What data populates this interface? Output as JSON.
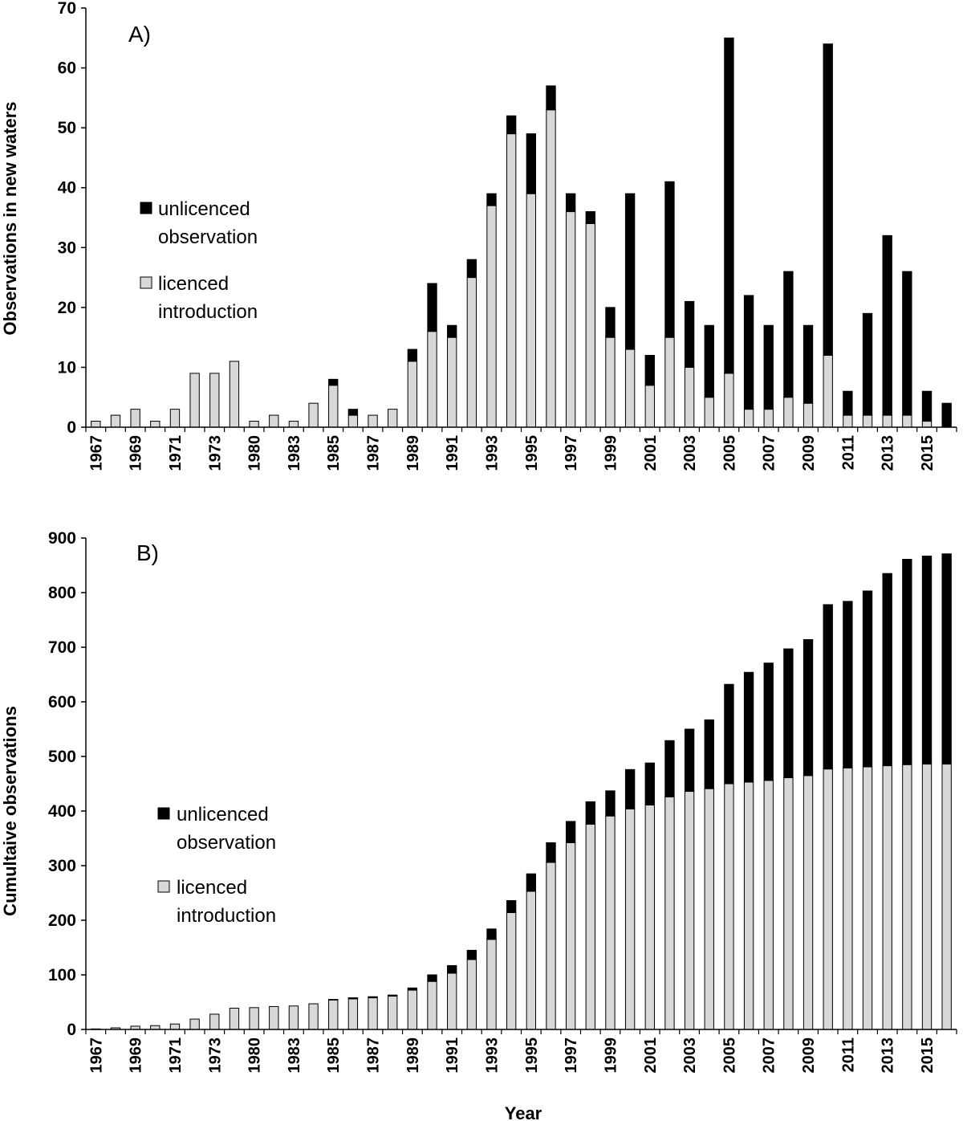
{
  "chart_data": [
    {
      "type": "bar",
      "stacked": true,
      "panel_label": "A)",
      "title": "",
      "xlabel": "",
      "ylabel": "Observations in new  waters",
      "ylim": [
        0,
        70
      ],
      "yticks": [
        0,
        10,
        20,
        30,
        40,
        50,
        60,
        70
      ],
      "grid": false,
      "legend_position": "left-middle",
      "categories": [
        "1967",
        "1968",
        "1969",
        "1970",
        "1971",
        "1972",
        "1973",
        "1974",
        "1980",
        "1982",
        "1983",
        "1984",
        "1985",
        "1986",
        "1987",
        "1988",
        "1989",
        "1990",
        "1991",
        "1992",
        "1993",
        "1994",
        "1995",
        "1996",
        "1997",
        "1998",
        "1999",
        "2000",
        "2001",
        "2002",
        "2003",
        "2004",
        "2005",
        "2006",
        "2007",
        "2008",
        "2009",
        "2010",
        "2011",
        "2012",
        "2013",
        "2014",
        "2015",
        "2016"
      ],
      "tick_labels": [
        "1967",
        "",
        "1969",
        "",
        "1971",
        "",
        "1973",
        "",
        "1980",
        "",
        "1983",
        "",
        "1985",
        "",
        "1987",
        "",
        "1989",
        "",
        "1991",
        "",
        "1993",
        "",
        "1995",
        "",
        "1997",
        "",
        "1999",
        "",
        "2001",
        "",
        "2003",
        "",
        "2005",
        "",
        "2007",
        "",
        "2009",
        "",
        "2011",
        "",
        "2013",
        "",
        "2015",
        ""
      ],
      "series": [
        {
          "name": "licenced introduction",
          "color": "#d8d8d8",
          "values": [
            1,
            2,
            3,
            1,
            3,
            9,
            9,
            11,
            1,
            2,
            1,
            4,
            7,
            2,
            2,
            3,
            11,
            16,
            15,
            25,
            37,
            49,
            39,
            53,
            36,
            34,
            15,
            13,
            7,
            15,
            10,
            5,
            9,
            3,
            3,
            5,
            4,
            12,
            2,
            2,
            2,
            2,
            1,
            0
          ]
        },
        {
          "name": "unlicenced observation",
          "color": "#000000",
          "values": [
            0,
            0,
            0,
            0,
            0,
            0,
            0,
            0,
            0,
            0,
            0,
            0,
            1,
            1,
            0,
            0,
            2,
            8,
            2,
            3,
            2,
            3,
            10,
            4,
            3,
            2,
            5,
            26,
            5,
            26,
            11,
            12,
            56,
            19,
            14,
            21,
            13,
            52,
            4,
            17,
            30,
            24,
            5,
            4
          ]
        }
      ],
      "legend_order": [
        "unlicenced observation",
        "licenced introduction"
      ]
    },
    {
      "type": "bar",
      "stacked": true,
      "panel_label": "B)",
      "title": "",
      "xlabel": "Year",
      "ylabel": "Cumultaive observations",
      "ylim": [
        0,
        900
      ],
      "yticks": [
        0,
        100,
        200,
        300,
        400,
        500,
        600,
        700,
        800,
        900
      ],
      "grid": false,
      "legend_position": "left-middle",
      "categories": [
        "1967",
        "1968",
        "1969",
        "1970",
        "1971",
        "1972",
        "1973",
        "1974",
        "1980",
        "1982",
        "1983",
        "1984",
        "1985",
        "1986",
        "1987",
        "1988",
        "1989",
        "1990",
        "1991",
        "1992",
        "1993",
        "1994",
        "1995",
        "1996",
        "1997",
        "1998",
        "1999",
        "2000",
        "2001",
        "2002",
        "2003",
        "2004",
        "2005",
        "2006",
        "2007",
        "2008",
        "2009",
        "2010",
        "2011",
        "2012",
        "2013",
        "2014",
        "2015",
        "2016"
      ],
      "tick_labels": [
        "1967",
        "",
        "1969",
        "",
        "1971",
        "",
        "1973",
        "",
        "1980",
        "",
        "1983",
        "",
        "1985",
        "",
        "1987",
        "",
        "1989",
        "",
        "1991",
        "",
        "1993",
        "",
        "1995",
        "",
        "1997",
        "",
        "1999",
        "",
        "2001",
        "",
        "2003",
        "",
        "2005",
        "",
        "2007",
        "",
        "2009",
        "",
        "2011",
        "",
        "2013",
        "",
        "2015",
        ""
      ],
      "series": [
        {
          "name": "licenced introduction",
          "color": "#d8d8d8",
          "values": [
            1,
            3,
            6,
            7,
            10,
            19,
            28,
            39,
            40,
            42,
            43,
            47,
            54,
            56,
            58,
            61,
            72,
            88,
            103,
            128,
            165,
            214,
            253,
            306,
            342,
            376,
            391,
            404,
            411,
            426,
            436,
            441,
            450,
            453,
            456,
            461,
            465,
            477,
            479,
            481,
            483,
            485,
            486,
            486
          ]
        },
        {
          "name": "unlicenced observation",
          "color": "#000000",
          "values": [
            0,
            0,
            0,
            0,
            0,
            0,
            0,
            0,
            0,
            0,
            0,
            0,
            1,
            2,
            2,
            2,
            4,
            12,
            14,
            17,
            19,
            22,
            32,
            36,
            39,
            41,
            46,
            72,
            77,
            103,
            114,
            126,
            182,
            201,
            215,
            236,
            249,
            301,
            305,
            322,
            352,
            376,
            381,
            385
          ]
        }
      ],
      "legend_order": [
        "unlicenced observation",
        "licenced introduction"
      ]
    }
  ]
}
